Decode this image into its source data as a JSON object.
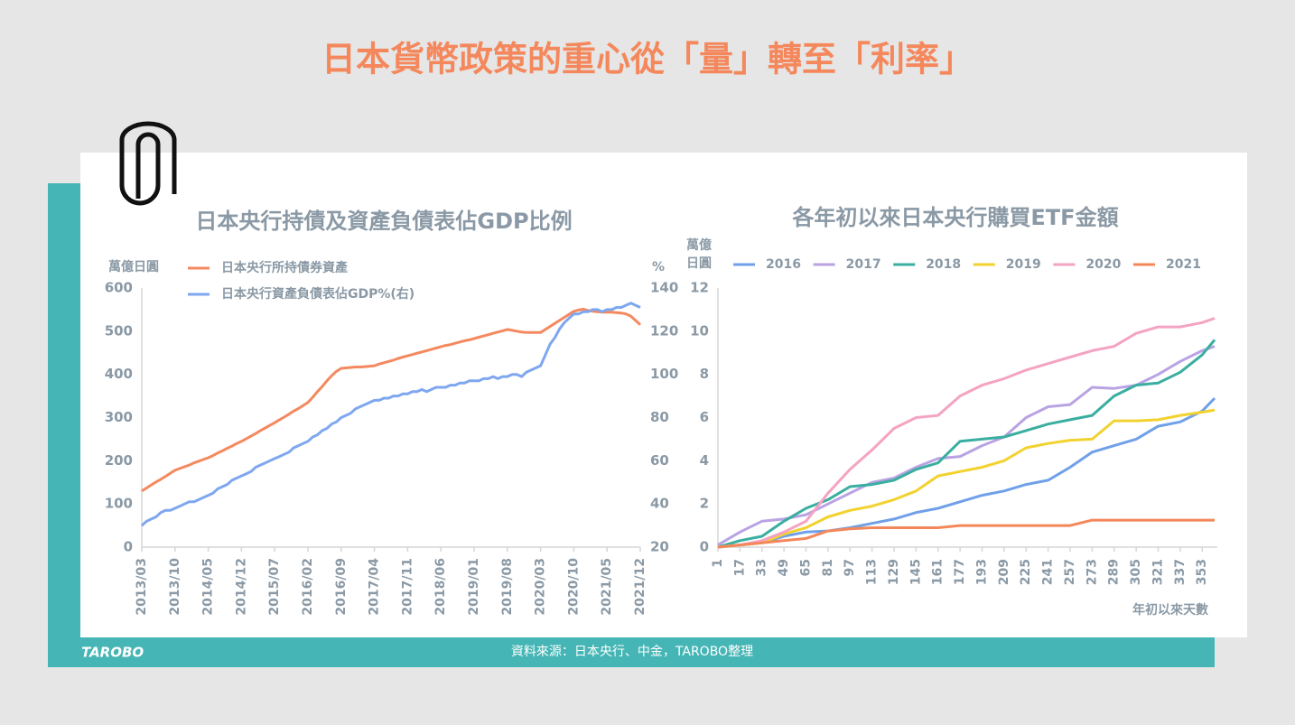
{
  "title": "日本貨幣政策的重心從「量」轉至「利率」",
  "source": "資料來源：日本央行、中金，TAROBO整理",
  "logo": "TAROBO",
  "chart_data": [
    {
      "type": "line",
      "title": "日本央行持債及資產負債表佔GDP比例",
      "ylabel": "萬億日圓",
      "y2label": "%",
      "legend": "top-left",
      "categories": [
        "2013/03",
        null,
        null,
        null,
        null,
        null,
        null,
        "2013/10",
        null,
        null,
        null,
        null,
        null,
        null,
        "2014/05",
        null,
        null,
        null,
        null,
        null,
        null,
        "2014/12",
        null,
        null,
        null,
        null,
        null,
        null,
        "2015/07",
        null,
        null,
        null,
        null,
        null,
        null,
        "2016/02",
        null,
        null,
        null,
        null,
        null,
        null,
        "2016/09",
        null,
        null,
        null,
        null,
        null,
        null,
        "2017/04",
        null,
        null,
        null,
        null,
        null,
        null,
        "2017/11",
        null,
        null,
        null,
        null,
        null,
        null,
        "2018/06",
        null,
        null,
        null,
        null,
        null,
        null,
        "2019/01",
        null,
        null,
        null,
        null,
        null,
        null,
        "2019/08",
        null,
        null,
        null,
        null,
        null,
        null,
        "2020/03",
        null,
        null,
        null,
        null,
        null,
        null,
        "2020/10",
        null,
        null,
        null,
        null,
        null,
        null,
        "2021/05",
        null,
        null,
        null,
        null,
        null,
        null,
        "2021/12"
      ],
      "series": [
        {
          "name": "日本央行所持債券資產",
          "color": "#f4895f",
          "values": [
            130,
            137,
            144,
            151,
            157,
            164,
            171,
            178,
            182,
            186,
            190,
            195,
            199,
            203,
            207,
            212,
            218,
            223,
            229,
            234,
            240,
            245,
            251,
            257,
            263,
            270,
            276,
            282,
            288,
            295,
            301,
            308,
            315,
            321,
            328,
            335,
            347,
            360,
            372,
            385,
            397,
            407,
            414,
            415,
            416,
            417,
            417,
            418,
            419,
            420,
            424,
            427,
            430,
            433,
            437,
            440,
            443,
            446,
            449,
            452,
            455,
            458,
            461,
            464,
            467,
            469,
            472,
            475,
            478,
            480,
            483,
            486,
            489,
            492,
            495,
            498,
            501,
            504,
            502,
            500,
            498,
            497,
            497,
            497,
            497,
            504,
            511,
            518,
            525,
            532,
            539,
            546,
            549,
            551,
            548,
            546,
            545,
            544,
            544,
            544,
            543,
            542,
            540,
            535,
            525,
            515
          ]
        },
        {
          "name": "日本央行資產負債表佔GDP%(右)",
          "color": "#7ea7ef",
          "axis": "y2",
          "values": [
            30,
            32,
            33,
            34,
            36,
            37,
            37,
            38,
            39,
            40,
            41,
            41,
            42,
            43,
            44,
            45,
            47,
            48,
            49,
            51,
            52,
            53,
            54,
            55,
            57,
            58,
            59,
            60,
            61,
            62,
            63,
            64,
            66,
            67,
            68,
            69,
            71,
            72,
            74,
            75,
            77,
            78,
            80,
            81,
            82,
            84,
            85,
            86,
            87,
            88,
            88,
            89,
            89,
            90,
            90,
            91,
            91,
            92,
            92,
            93,
            92,
            93,
            94,
            94,
            94,
            95,
            95,
            96,
            96,
            97,
            97,
            97,
            98,
            98,
            99,
            98,
            99,
            99,
            100,
            100,
            99,
            101,
            102,
            103,
            104,
            109,
            114,
            117,
            121,
            124,
            126,
            128,
            128,
            129,
            129,
            130,
            130,
            129,
            130,
            130,
            131,
            131,
            132,
            133,
            132,
            131
          ]
        }
      ],
      "ylim": [
        0,
        600
      ],
      "yticks": [
        0,
        100,
        200,
        300,
        400,
        500,
        600
      ],
      "y2lim": [
        20,
        140
      ],
      "y2ticks": [
        20,
        40,
        60,
        80,
        100,
        120,
        140
      ]
    },
    {
      "type": "line",
      "title": "各年初以來日本央行購買ETF金額",
      "ylabel": "萬億日圓",
      "xlabel": "年初以來天數",
      "legend": "top",
      "x": [
        1,
        17,
        33,
        49,
        65,
        81,
        97,
        113,
        129,
        145,
        161,
        177,
        193,
        209,
        225,
        241,
        257,
        273,
        289,
        305,
        321,
        337,
        353,
        362
      ],
      "series": [
        {
          "name": "2016",
          "color": "#6fa0e8",
          "values": [
            0,
            0.1,
            0.2,
            0.5,
            0.7,
            0.75,
            0.9,
            1.1,
            1.3,
            1.6,
            1.8,
            2.1,
            2.4,
            2.6,
            2.9,
            3.1,
            3.7,
            4.4,
            4.7,
            5.0,
            5.6,
            5.8,
            6.3,
            6.9
          ]
        },
        {
          "name": "2017",
          "color": "#b9a3e3",
          "values": [
            0.1,
            0.7,
            1.2,
            1.3,
            1.5,
            2.0,
            2.5,
            3.0,
            3.2,
            3.7,
            4.1,
            4.2,
            4.7,
            5.1,
            6.0,
            6.5,
            6.6,
            7.4,
            7.35,
            7.5,
            8.0,
            8.6,
            9.1,
            9.3
          ]
        },
        {
          "name": "2018",
          "color": "#3aaea0",
          "values": [
            0,
            0.3,
            0.5,
            1.2,
            1.8,
            2.2,
            2.8,
            2.9,
            3.1,
            3.6,
            3.9,
            4.9,
            5.0,
            5.1,
            5.4,
            5.7,
            5.9,
            6.1,
            7.0,
            7.5,
            7.6,
            8.1,
            8.9,
            9.6
          ]
        },
        {
          "name": "2019",
          "color": "#f2d22e",
          "values": [
            0,
            0.1,
            0.2,
            0.6,
            0.9,
            1.4,
            1.7,
            1.9,
            2.2,
            2.6,
            3.3,
            3.5,
            3.7,
            4.0,
            4.6,
            4.8,
            4.95,
            5.0,
            5.85,
            5.85,
            5.9,
            6.1,
            6.25,
            6.35
          ]
        },
        {
          "name": "2020",
          "color": "#f4a3c2",
          "values": [
            0,
            0.1,
            0.3,
            0.7,
            1.2,
            2.5,
            3.6,
            4.5,
            5.5,
            6.0,
            6.1,
            7.0,
            7.5,
            7.8,
            8.2,
            8.5,
            8.8,
            9.1,
            9.3,
            9.9,
            10.2,
            10.2,
            10.4,
            10.6
          ]
        },
        {
          "name": "2021",
          "color": "#f4875a",
          "values": [
            0,
            0.1,
            0.2,
            0.3,
            0.4,
            0.75,
            0.85,
            0.9,
            0.9,
            0.9,
            0.9,
            1.0,
            1.0,
            1.0,
            1.0,
            1.0,
            1.0,
            1.25,
            1.25,
            1.25,
            1.25,
            1.25,
            1.25,
            1.25
          ]
        }
      ],
      "xlim": [
        1,
        364
      ],
      "xticks": [
        1,
        17,
        33,
        49,
        65,
        81,
        97,
        113,
        129,
        145,
        161,
        177,
        193,
        209,
        225,
        241,
        257,
        273,
        289,
        305,
        321,
        337,
        353
      ],
      "ylim": [
        0,
        12
      ],
      "yticks": [
        0,
        2,
        4,
        6,
        8,
        10,
        12
      ]
    }
  ]
}
